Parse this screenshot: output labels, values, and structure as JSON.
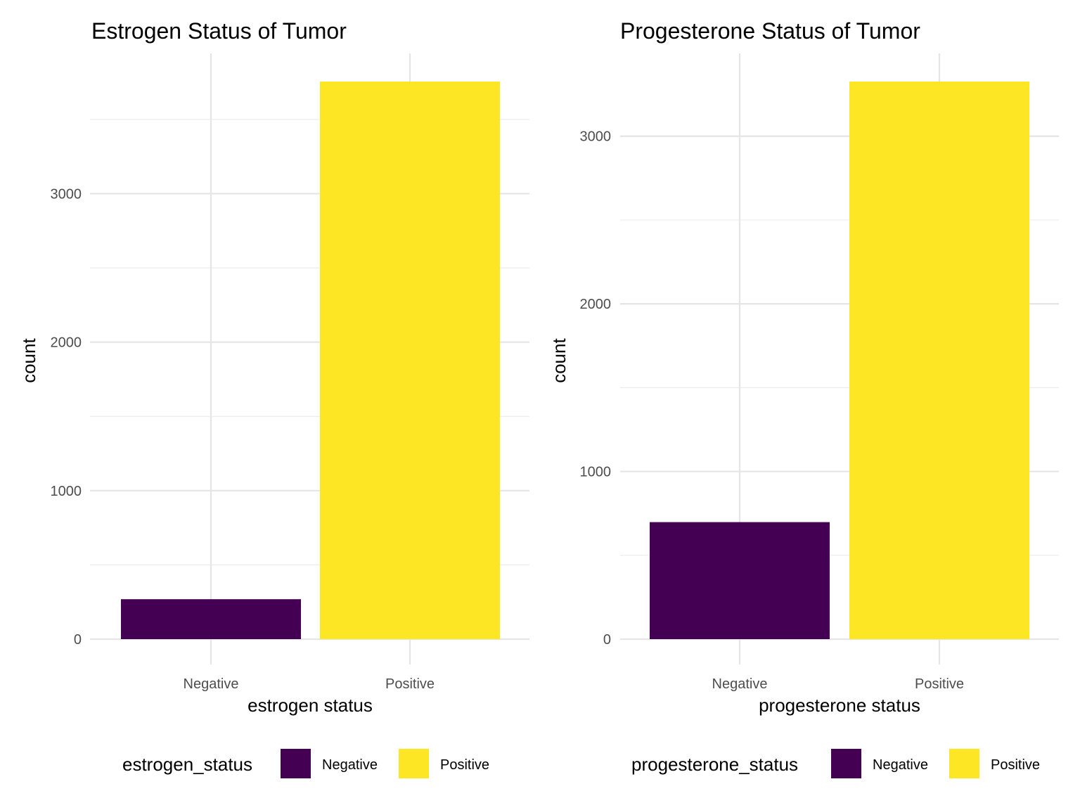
{
  "colors": {
    "negative": "#440154",
    "positive": "#FDE725",
    "grid_major": "#e5e5e5",
    "grid_minor": "#ececec",
    "tick_text": "#4d4d4d"
  },
  "chart_data": [
    {
      "type": "bar",
      "title": "Estrogen Status of Tumor",
      "xlabel": "estrogen status",
      "ylabel": "count",
      "categories": [
        "Negative",
        "Positive"
      ],
      "values": [
        269,
        3755
      ],
      "ylim": [
        0,
        3755
      ],
      "yticks": [
        0,
        1000,
        2000,
        3000
      ],
      "ytick_labels": [
        "0",
        "1000",
        "2000",
        "3000"
      ],
      "yminor": [
        500,
        1500,
        2500,
        3500
      ],
      "grid": true,
      "legend": {
        "title": "estrogen_status",
        "placement": "bottom",
        "entries": [
          "Negative",
          "Positive"
        ]
      }
    },
    {
      "type": "bar",
      "title": "Progesterone Status of Tumor",
      "xlabel": "progesterone status",
      "ylabel": "count",
      "categories": [
        "Negative",
        "Positive"
      ],
      "values": [
        698,
        3326
      ],
      "ylim": [
        0,
        3326
      ],
      "yticks": [
        0,
        1000,
        2000,
        3000
      ],
      "ytick_labels": [
        "0",
        "1000",
        "2000",
        "3000"
      ],
      "yminor": [
        500,
        1500,
        2500
      ],
      "grid": true,
      "legend": {
        "title": "progesterone_status",
        "placement": "bottom",
        "entries": [
          "Negative",
          "Positive"
        ]
      }
    }
  ]
}
